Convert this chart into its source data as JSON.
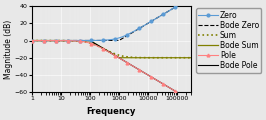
{
  "title": "",
  "xlabel": "Frequency",
  "ylabel": "Magnitude (dB)",
  "ylim": [
    -60,
    40
  ],
  "xlim": [
    1,
    300000
  ],
  "yticks": [
    -60,
    -40,
    -20,
    0,
    20,
    40
  ],
  "pole_freq": 100,
  "zero_freq": 1000,
  "colors": {
    "zero": "#5B9BD5",
    "bode_zero": "#000000",
    "sum": "#7F7F00",
    "bode_sum": "#7F7F00",
    "pole": "#FF8080",
    "bode_pole": "#000000"
  },
  "legend_fontsize": 5.5
}
